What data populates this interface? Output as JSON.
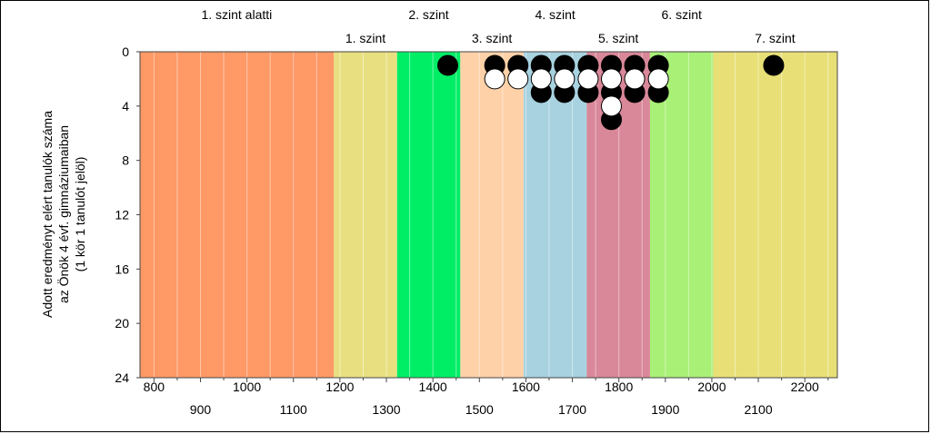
{
  "chart_data": {
    "type": "scatter",
    "title": "",
    "ylabel": [
      "Adott eredményt elért tanulók száma",
      "az Önök 4 évf. gimnáziumaiban",
      "(1 kör 1 tanulót jelöl)"
    ],
    "xlim": [
      770,
      2270
    ],
    "ylim": [
      0,
      24
    ],
    "y_inverted": true,
    "y_ticks": [
      "0",
      "4",
      "8",
      "12",
      "16",
      "20",
      "24"
    ],
    "x_ticks_top_row": [
      "800",
      "1000",
      "1200",
      "1400",
      "1600",
      "1800",
      "2000",
      "2200"
    ],
    "x_ticks_bottom_row": [
      "900",
      "1100",
      "1300",
      "1500",
      "1700",
      "1900",
      "2100"
    ],
    "grid": "vertical every 50",
    "bands": [
      {
        "from": 770,
        "to": 1187,
        "color": "#ff9966"
      },
      {
        "from": 1187,
        "to": 1323,
        "color": "#e8e080"
      },
      {
        "from": 1323,
        "to": 1459,
        "color": "#00ee66"
      },
      {
        "from": 1459,
        "to": 1595,
        "color": "#ffd1a8"
      },
      {
        "from": 1595,
        "to": 1731,
        "color": "#a8d2e0"
      },
      {
        "from": 1731,
        "to": 1867,
        "color": "#d98899"
      },
      {
        "from": 1867,
        "to": 2003,
        "color": "#a9f077"
      },
      {
        "from": 2003,
        "to": 2270,
        "color": "#e8e077"
      }
    ],
    "level_labels_top_row": [
      {
        "x": 978,
        "label": "1. szint alatti"
      },
      {
        "x": 1391,
        "label": "2. szint"
      },
      {
        "x": 1663,
        "label": "4. szint"
      },
      {
        "x": 1935,
        "label": "6. szint"
      }
    ],
    "level_labels_bottom_row": [
      {
        "x": 1255,
        "label": "1. szint"
      },
      {
        "x": 1527,
        "label": "3. szint"
      },
      {
        "x": 1799,
        "label": "5. szint"
      },
      {
        "x": 2136,
        "label": "7. szint"
      }
    ],
    "series": [
      {
        "fill": "#000000",
        "points": [
          {
            "x": 1432,
            "y": 1
          },
          {
            "x": 1533,
            "y": 1
          },
          {
            "x": 1583,
            "y": 1
          },
          {
            "x": 1633,
            "y": 1
          },
          {
            "x": 1683,
            "y": 1
          },
          {
            "x": 1734,
            "y": 1
          },
          {
            "x": 1784,
            "y": 1
          },
          {
            "x": 1834,
            "y": 1
          },
          {
            "x": 1885,
            "y": 1
          },
          {
            "x": 2133,
            "y": 1
          },
          {
            "x": 1633,
            "y": 3
          },
          {
            "x": 1683,
            "y": 3
          },
          {
            "x": 1734,
            "y": 3
          },
          {
            "x": 1784,
            "y": 3
          },
          {
            "x": 1834,
            "y": 3
          },
          {
            "x": 1885,
            "y": 3
          },
          {
            "x": 1784,
            "y": 5
          }
        ]
      },
      {
        "fill": "#ffffff",
        "points": [
          {
            "x": 1533,
            "y": 2
          },
          {
            "x": 1583,
            "y": 2
          },
          {
            "x": 1633,
            "y": 2
          },
          {
            "x": 1683,
            "y": 2
          },
          {
            "x": 1734,
            "y": 2
          },
          {
            "x": 1784,
            "y": 2
          },
          {
            "x": 1834,
            "y": 2
          },
          {
            "x": 1885,
            "y": 2
          },
          {
            "x": 1784,
            "y": 4
          }
        ]
      }
    ]
  }
}
